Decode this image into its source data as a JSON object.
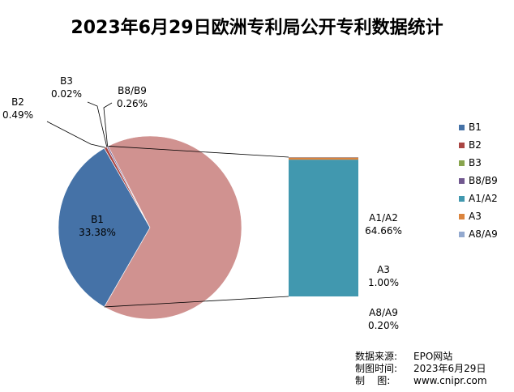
{
  "title": "2023年6月29日欧洲专利局公开专利数据统计",
  "chart_data": {
    "type": "pie",
    "subtype": "pie-of-bar",
    "title": "2023年6月29日欧洲专利局公开专利数据统计",
    "categories": [
      "B1",
      "B2",
      "B3",
      "B8/B9",
      "A1/A2",
      "A3",
      "A8/A9"
    ],
    "values": [
      33.38,
      0.49,
      0.02,
      0.26,
      64.66,
      1.0,
      0.2
    ],
    "value_labels": [
      "33.38%",
      "0.49%",
      "0.02%",
      "0.26%",
      "64.66%",
      "1.00%",
      "0.20%"
    ],
    "colors": [
      "#4572A7",
      "#AA4643",
      "#89A54E",
      "#71588F",
      "#4198AF",
      "#DB843D",
      "#93A9CF"
    ],
    "bar_categories": [
      "A1/A2",
      "A3",
      "A8/A9"
    ],
    "legend_position": "right"
  },
  "source": [
    {
      "key": "数据来源:",
      "value": "EPO网站"
    },
    {
      "key": "制图时间:",
      "value": "2023年6月29日"
    },
    {
      "key": "制    图:",
      "value": "www.cnipr.com"
    }
  ]
}
